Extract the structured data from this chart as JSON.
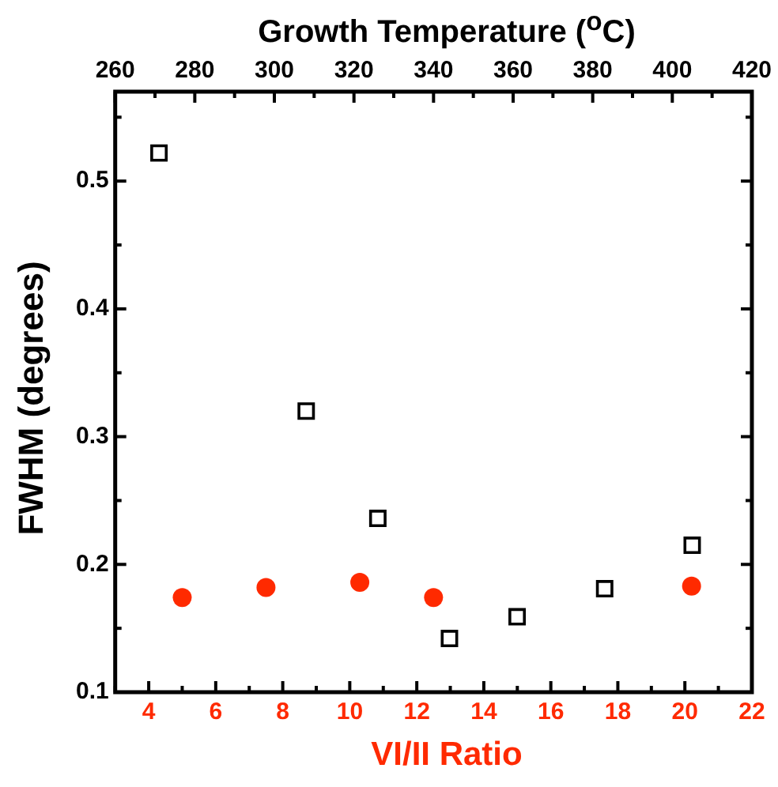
{
  "chart_data": {
    "type": "scatter",
    "xlabel": "VI/II Ratio",
    "x2label": "Growth Temperature ($^{o}$C)",
    "ylabel": "FWHM (degrees)",
    "xlim": [
      3,
      22
    ],
    "xticks": [
      {
        "value": 3,
        "label": null
      },
      4,
      {
        "value": 5,
        "label": null
      },
      6,
      {
        "value": 7,
        "label": null
      },
      8,
      {
        "value": 9,
        "label": null
      },
      10,
      {
        "value": 11,
        "label": null
      },
      12,
      {
        "value": 13,
        "label": null
      },
      14,
      {
        "value": 15,
        "label": null
      },
      16,
      {
        "value": 17,
        "label": null
      },
      18,
      {
        "value": 19,
        "label": null
      },
      20,
      {
        "value": 21,
        "label": null
      },
      22
    ],
    "x2lim": [
      260,
      420
    ],
    "x2ticks": [
      260,
      {
        "value": 270,
        "label": null
      },
      280,
      {
        "value": 290,
        "label": null
      },
      300,
      {
        "value": 310,
        "label": null
      },
      320,
      {
        "value": 330,
        "label": null
      },
      340,
      {
        "value": 350,
        "label": null
      },
      360,
      {
        "value": 370,
        "label": null
      },
      380,
      {
        "value": 390,
        "label": null
      },
      400,
      {
        "value": 410,
        "label": null
      },
      420
    ],
    "ylim": [
      0.1,
      0.57
    ],
    "yticks": [
      0.1,
      {
        "value": 0.15,
        "label": null
      },
      0.2,
      {
        "value": 0.25,
        "label": null
      },
      0.3,
      {
        "value": 0.35,
        "label": null
      },
      0.4,
      {
        "value": 0.45,
        "label": null
      },
      0.5,
      {
        "value": 0.55,
        "label": null
      }
    ],
    "grid": false,
    "legend": false,
    "series": [
      {
        "color": "#ff2a00",
        "marker": "circle",
        "x": [
          5,
          7.5,
          10.3,
          12.5,
          20.2
        ],
        "values": [
          0.174,
          0.182,
          0.186,
          0.174,
          0.183
        ]
      },
      {
        "color": "#000000",
        "marker": "square",
        "axis": "x2",
        "x": [
          271,
          308,
          326,
          344,
          361,
          383,
          405
        ],
        "values": [
          0.522,
          0.32,
          0.236,
          0.142,
          0.159,
          0.181,
          0.215
        ]
      }
    ]
  }
}
